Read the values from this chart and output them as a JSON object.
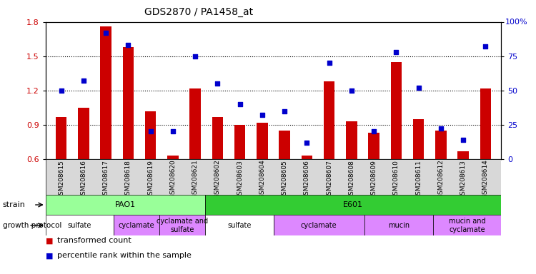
{
  "title": "GDS2870 / PA1458_at",
  "samples": [
    "GSM208615",
    "GSM208616",
    "GSM208617",
    "GSM208618",
    "GSM208619",
    "GSM208620",
    "GSM208621",
    "GSM208602",
    "GSM208603",
    "GSM208604",
    "GSM208605",
    "GSM208606",
    "GSM208607",
    "GSM208608",
    "GSM208609",
    "GSM208610",
    "GSM208611",
    "GSM208612",
    "GSM208613",
    "GSM208614"
  ],
  "transformed_count": [
    0.97,
    1.05,
    1.76,
    1.58,
    1.02,
    0.63,
    1.22,
    0.97,
    0.9,
    0.92,
    0.85,
    0.63,
    1.28,
    0.93,
    0.83,
    1.45,
    0.95,
    0.85,
    0.67,
    1.22
  ],
  "percentile_rank": [
    50,
    57,
    92,
    83,
    20,
    20,
    75,
    55,
    40,
    32,
    35,
    12,
    70,
    50,
    20,
    78,
    52,
    22,
    14,
    82
  ],
  "ylim_left": [
    0.6,
    1.8
  ],
  "ylim_right": [
    0,
    100
  ],
  "yticks_left": [
    0.6,
    0.9,
    1.2,
    1.5,
    1.8
  ],
  "yticks_right": [
    0,
    25,
    50,
    75,
    100
  ],
  "bar_color": "#cc0000",
  "dot_color": "#0000cc",
  "background_color": "#ffffff",
  "strain_row": [
    {
      "label": "PAO1",
      "start": 0,
      "end": 7,
      "color": "#99ff99"
    },
    {
      "label": "E601",
      "start": 7,
      "end": 20,
      "color": "#33cc33"
    }
  ],
  "protocol_row": [
    {
      "label": "sulfate",
      "start": 0,
      "end": 3,
      "color": "#ffffff"
    },
    {
      "label": "cyclamate",
      "start": 3,
      "end": 5,
      "color": "#dd88ff"
    },
    {
      "label": "cyclamate and\nsulfate",
      "start": 5,
      "end": 7,
      "color": "#dd88ff"
    },
    {
      "label": "sulfate",
      "start": 7,
      "end": 10,
      "color": "#ffffff"
    },
    {
      "label": "cyclamate",
      "start": 10,
      "end": 14,
      "color": "#dd88ff"
    },
    {
      "label": "mucin",
      "start": 14,
      "end": 17,
      "color": "#dd88ff"
    },
    {
      "label": "mucin and\ncyclamate",
      "start": 17,
      "end": 20,
      "color": "#dd88ff"
    }
  ],
  "strain_label": "strain",
  "protocol_label": "growth protocol",
  "legend_items": [
    {
      "label": "transformed count",
      "color": "#cc0000"
    },
    {
      "label": "percentile rank within the sample",
      "color": "#0000cc"
    }
  ]
}
